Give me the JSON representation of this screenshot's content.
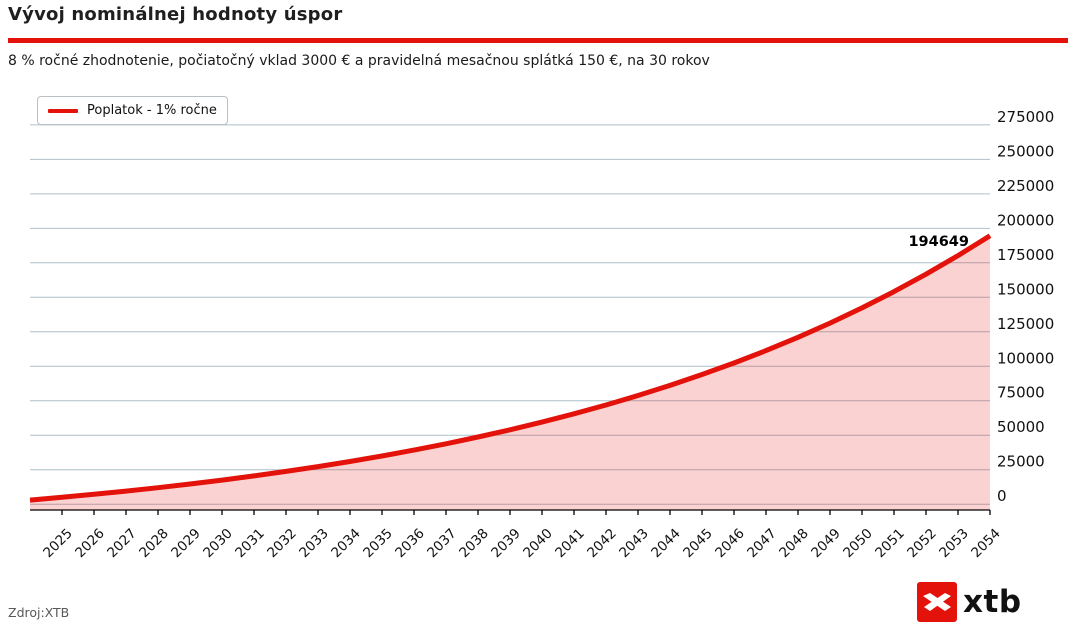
{
  "header": {
    "title": "Vývoj nominálnej hodnoty úspor",
    "subtitle": "8 % ročné zhodnotenie, počiatočný vklad 3000 € a pravidelná mesačnou splátká 150 €, na 30 rokov"
  },
  "legend": {
    "label": "Poplatok - 1% ročne"
  },
  "footer": {
    "source": "Zdroj:XTB",
    "logo_text": "xtb"
  },
  "colors": {
    "accent_red": "#e3120b",
    "area_fill": "rgba(227,18,11,0.19)",
    "gridline": "#aebfca",
    "axis": "#000000",
    "tick_text": "#111111",
    "source_gray": "#595959"
  },
  "chart_data": {
    "type": "area",
    "title": "Vývoj nominálnej hodnoty úspor",
    "subtitle": "8 % ročné zhodnotenie, počiatočný vklad 3000 € a pravidelná mesačnou splátká 150 €, na 30 rokov",
    "grid": true,
    "legend_position": "top-left",
    "xlim": [
      2024,
      2054
    ],
    "ylim": [
      0,
      275000
    ],
    "x_tick_labels": [
      "2025",
      "2026",
      "2027",
      "2028",
      "2029",
      "2030",
      "2031",
      "2032",
      "2033",
      "2034",
      "2035",
      "2036",
      "2037",
      "2038",
      "2039",
      "2040",
      "2041",
      "2042",
      "2043",
      "2044",
      "2045",
      "2046",
      "2047",
      "2048",
      "2049",
      "2050",
      "2051",
      "2052",
      "2053",
      "2054"
    ],
    "y_tick_values": [
      0,
      25000,
      50000,
      75000,
      100000,
      125000,
      150000,
      175000,
      200000,
      225000,
      250000,
      275000
    ],
    "end_value_label": "194649",
    "series": [
      {
        "name": "Poplatok - 1% ročne",
        "color": "#e3120b",
        "x": [
          2024,
          2025,
          2026,
          2027,
          2028,
          2029,
          2030,
          2031,
          2032,
          2033,
          2034,
          2035,
          2036,
          2037,
          2038,
          2039,
          2040,
          2041,
          2042,
          2043,
          2044,
          2045,
          2046,
          2047,
          2048,
          2049,
          2050,
          2051,
          2052,
          2053,
          2054
        ],
        "values": [
          3000,
          4975,
          7146,
          9468,
          11956,
          14617,
          17461,
          20508,
          23767,
          27254,
          30986,
          34978,
          39249,
          43818,
          48709,
          53941,
          59542,
          65533,
          71943,
          78802,
          86143,
          93996,
          102398,
          111387,
          121008,
          131300,
          142316,
          154103,
          166712,
          180207,
          194649
        ]
      }
    ]
  }
}
